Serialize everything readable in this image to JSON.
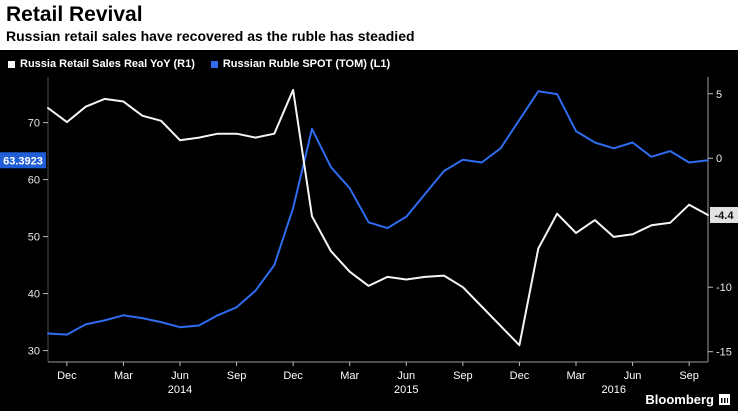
{
  "header": {
    "title": "Retail Revival",
    "subtitle": "Russian retail sales have recovered as the ruble has steadied"
  },
  "legend": [
    {
      "label": "Russia Retail Sales Real YoY (R1)",
      "color": "#f5f5f5"
    },
    {
      "label": "Russian Ruble SPOT (TOM) (L1)",
      "color": "#2f6cf0"
    }
  ],
  "branding": "Bloomberg",
  "chart_data": {
    "type": "line",
    "x": [
      "Nov 2013",
      "Dec 2013",
      "Jan 2014",
      "Feb 2014",
      "Mar 2014",
      "Apr 2014",
      "May 2014",
      "Jun 2014",
      "Jul 2014",
      "Aug 2014",
      "Sep 2014",
      "Oct 2014",
      "Nov 2014",
      "Dec 2014",
      "Jan 2015",
      "Feb 2015",
      "Mar 2015",
      "Apr 2015",
      "May 2015",
      "Jun 2015",
      "Jul 2015",
      "Aug 2015",
      "Sep 2015",
      "Oct 2015",
      "Nov 2015",
      "Dec 2015",
      "Jan 2016",
      "Feb 2016",
      "Mar 2016",
      "Apr 2016",
      "May 2016",
      "Jun 2016",
      "Jul 2016",
      "Aug 2016",
      "Sep 2016",
      "Oct 2016"
    ],
    "x_ticks": [
      {
        "i": 1,
        "label": "Dec"
      },
      {
        "i": 4,
        "label": "Mar"
      },
      {
        "i": 7,
        "label": "Jun"
      },
      {
        "i": 10,
        "label": "Sep"
      },
      {
        "i": 13,
        "label": "Dec"
      },
      {
        "i": 16,
        "label": "Mar"
      },
      {
        "i": 19,
        "label": "Jun"
      },
      {
        "i": 22,
        "label": "Sep"
      },
      {
        "i": 25,
        "label": "Dec"
      },
      {
        "i": 28,
        "label": "Mar"
      },
      {
        "i": 31,
        "label": "Jun"
      },
      {
        "i": 34,
        "label": "Sep"
      }
    ],
    "year_ticks": [
      {
        "i": 7,
        "label": "2014"
      },
      {
        "i": 19,
        "label": "2015"
      },
      {
        "i": 30,
        "label": "2016"
      }
    ],
    "left_axis": {
      "title": "Russian Ruble SPOT (TOM) (L1)",
      "range": [
        28,
        78
      ],
      "ticks": [
        30,
        40,
        50,
        60,
        70
      ],
      "last_value": "63.3923",
      "badge_color": "#1f5ed6"
    },
    "right_axis": {
      "title": "Russia Retail Sales Real YoY (R1)",
      "range": [
        -15.8,
        6.3
      ],
      "ticks": [
        5,
        0,
        -10,
        -15
      ],
      "last_value": "-4.4",
      "badge_color": "#e2e2e2"
    },
    "series": [
      {
        "id": "ruble-spot",
        "name": "Russian Ruble SPOT (TOM) (L1)",
        "axis": "left",
        "color": "#2f6cf0",
        "values": [
          33.0,
          32.8,
          34.6,
          35.3,
          36.2,
          35.7,
          35.0,
          34.1,
          34.4,
          36.2,
          37.6,
          40.5,
          45.0,
          55.0,
          68.9,
          62.2,
          58.5,
          52.5,
          51.5,
          53.5,
          57.5,
          61.5,
          63.5,
          63.0,
          65.5,
          70.5,
          75.5,
          75.0,
          68.5,
          66.5,
          65.5,
          66.5,
          64.0,
          65.0,
          63.0,
          63.39
        ]
      },
      {
        "id": "retail-sales",
        "name": "Russia Retail Sales Real YoY (R1)",
        "axis": "right",
        "color": "#f5f5f5",
        "values": [
          3.9,
          2.8,
          4.0,
          4.6,
          4.4,
          3.3,
          2.9,
          1.4,
          1.6,
          1.9,
          1.9,
          1.6,
          1.9,
          5.3,
          -4.5,
          -7.2,
          -8.8,
          -9.9,
          -9.2,
          -9.4,
          -9.2,
          -9.1,
          -10.0,
          -11.5,
          -13.0,
          -14.5,
          -7.0,
          -4.3,
          -5.8,
          -4.8,
          -6.1,
          -5.9,
          -5.2,
          -5.0,
          -3.6,
          -4.4
        ]
      }
    ]
  }
}
